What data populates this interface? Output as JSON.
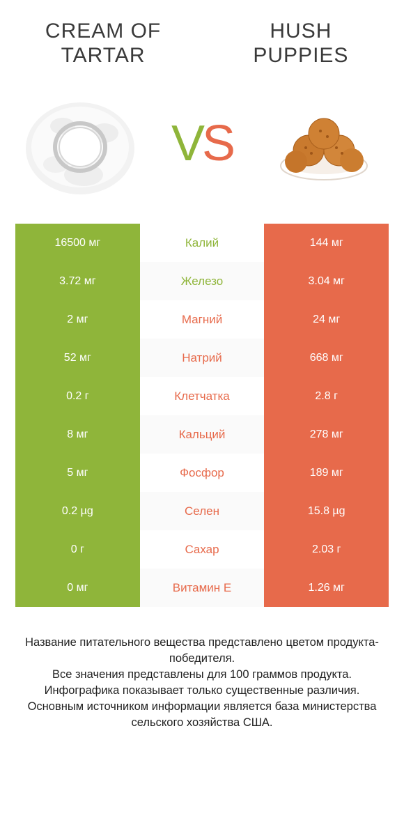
{
  "colors": {
    "green": "#8fb53a",
    "orange": "#e76a4b",
    "title": "#3a3a3a",
    "vs_v": "#8fb53a",
    "vs_s": "#e76a4b"
  },
  "titles": {
    "left_line1": "Cream of",
    "left_line2": "Tartar",
    "right_line1": "Hush",
    "right_line2": "Puppies"
  },
  "vs": {
    "v": "V",
    "s": "S"
  },
  "rows": [
    {
      "left": "16500 мг",
      "label": "Калий",
      "label_color": "green",
      "right": "144 мг"
    },
    {
      "left": "3.72 мг",
      "label": "Железо",
      "label_color": "green",
      "right": "3.04 мг"
    },
    {
      "left": "2 мг",
      "label": "Магний",
      "label_color": "orange",
      "right": "24 мг"
    },
    {
      "left": "52 мг",
      "label": "Натрий",
      "label_color": "orange",
      "right": "668 мг"
    },
    {
      "left": "0.2 г",
      "label": "Клетчатка",
      "label_color": "orange",
      "right": "2.8 г"
    },
    {
      "left": "8 мг",
      "label": "Кальций",
      "label_color": "orange",
      "right": "278 мг"
    },
    {
      "left": "5 мг",
      "label": "Фосфор",
      "label_color": "orange",
      "right": "189 мг"
    },
    {
      "left": "0.2 µg",
      "label": "Селен",
      "label_color": "orange",
      "right": "15.8 µg"
    },
    {
      "left": "0 г",
      "label": "Сахар",
      "label_color": "orange",
      "right": "2.03 г"
    },
    {
      "left": "0 мг",
      "label": "Витамин E",
      "label_color": "orange",
      "right": "1.26 мг"
    }
  ],
  "footer": {
    "line1": "Название питательного вещества представлено цветом продукта-победителя.",
    "line2": "Все значения представлены для 100 граммов продукта.",
    "line3": "Инфографика показывает только существенные различия.",
    "line4": "Основным источником информации является база министерства сельского хозяйства США."
  }
}
